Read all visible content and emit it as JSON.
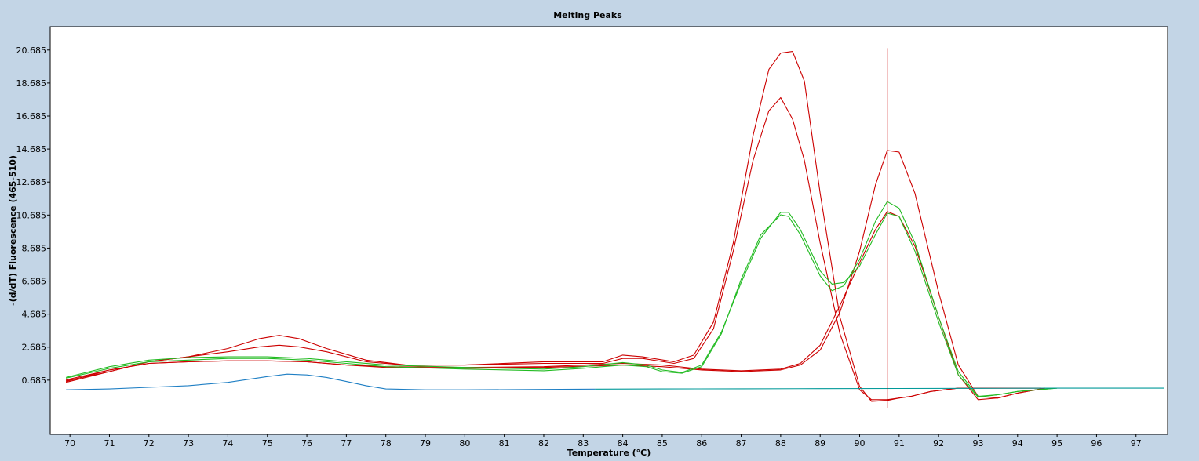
{
  "chart_data": {
    "type": "line",
    "title": "Melting Peaks",
    "xlabel": "Temperature (°C)",
    "ylabel": "-(d/dT) Fluorescence (465-510)",
    "xlim": [
      69.5,
      97.8
    ],
    "ylim": [
      -2.6,
      22.1
    ],
    "x_ticks": [
      "70",
      "71",
      "72",
      "73",
      "74",
      "75",
      "76",
      "77",
      "78",
      "79",
      "80",
      "81",
      "82",
      "83",
      "84",
      "85",
      "86",
      "87",
      "88",
      "89",
      "90",
      "91",
      "92",
      "93",
      "94",
      "95",
      "96",
      "97"
    ],
    "y_ticks": [
      "0.685",
      "2.685",
      "4.685",
      "6.685",
      "8.685",
      "10.685",
      "12.685",
      "14.685",
      "16.685",
      "18.685",
      "20.685"
    ],
    "grid": false,
    "cursor_x": 90.7,
    "series": [
      {
        "color": "#cc0000",
        "x": [
          69.9,
          71,
          72,
          73,
          74,
          74.8,
          75.3,
          75.8,
          76.5,
          77.5,
          78.5,
          80,
          82,
          83.5,
          84,
          84.5,
          85.3,
          85.8,
          86.3,
          86.8,
          87.3,
          87.7,
          88,
          88.3,
          88.6,
          89,
          89.5,
          90,
          90.3,
          90.7,
          91,
          91.3,
          91.8,
          92.5,
          93,
          93.5,
          94,
          94.6
        ],
        "values": [
          0.55,
          1.2,
          1.8,
          2.1,
          2.6,
          3.2,
          3.4,
          3.2,
          2.6,
          1.9,
          1.6,
          1.6,
          1.8,
          1.8,
          2.2,
          2.1,
          1.8,
          2.2,
          4.2,
          9,
          15.5,
          19.5,
          20.5,
          20.6,
          18.8,
          12,
          4.5,
          0.3,
          -0.6,
          -0.55,
          -0.4,
          -0.3,
          0,
          0.2,
          0.2,
          0.2,
          0.2,
          0.2
        ]
      },
      {
        "color": "#cc0000",
        "x": [
          69.9,
          71,
          72,
          73,
          74,
          74.8,
          75.3,
          75.8,
          76.5,
          77.5,
          78.5,
          80,
          82,
          83.5,
          84,
          84.5,
          85.3,
          85.8,
          86.3,
          86.8,
          87.3,
          87.7,
          88,
          88.3,
          88.6,
          89,
          89.5,
          90,
          90.3,
          90.7,
          91,
          91.3,
          91.8,
          92.5,
          93,
          93.5,
          94,
          94.6
        ],
        "values": [
          0.65,
          1.2,
          1.8,
          2.1,
          2.4,
          2.7,
          2.8,
          2.7,
          2.4,
          1.8,
          1.6,
          1.6,
          1.7,
          1.7,
          2,
          2,
          1.7,
          2,
          3.8,
          8.5,
          14,
          17,
          17.8,
          16.5,
          14,
          9,
          3.5,
          0.1,
          -0.5,
          -0.5,
          -0.4,
          -0.3,
          0,
          0.2,
          0.2,
          0.2,
          0.2,
          0.2
        ]
      },
      {
        "color": "#cc0000",
        "x": [
          69.9,
          71,
          72,
          73,
          74,
          75,
          76,
          77,
          78,
          80,
          82,
          84,
          85,
          86,
          87,
          88,
          88.5,
          89,
          89.5,
          90,
          90.4,
          90.7,
          91,
          91.4,
          92,
          92.5,
          93,
          93.5,
          94,
          94.7
        ],
        "values": [
          0.7,
          1.3,
          1.7,
          1.8,
          1.85,
          1.85,
          1.8,
          1.6,
          1.45,
          1.4,
          1.45,
          1.6,
          1.5,
          1.3,
          1.2,
          1.3,
          1.6,
          2.5,
          4.8,
          8.5,
          12.5,
          14.6,
          14.5,
          12,
          6,
          1.6,
          -0.3,
          -0.4,
          -0.1,
          0.2
        ]
      },
      {
        "color": "#cc0000",
        "x": [
          69.9,
          71,
          72,
          73,
          74,
          75,
          76,
          77,
          78,
          80,
          82,
          84,
          85,
          86,
          87,
          88,
          88.5,
          89,
          89.5,
          90,
          90.4,
          90.7,
          91,
          91.4,
          92,
          92.5,
          93,
          93.5,
          94,
          94.7
        ],
        "values": [
          0.6,
          1.3,
          1.7,
          1.8,
          1.85,
          1.85,
          1.8,
          1.6,
          1.5,
          1.45,
          1.5,
          1.7,
          1.6,
          1.35,
          1.25,
          1.35,
          1.7,
          2.8,
          5.2,
          7.8,
          9.8,
          10.9,
          10.6,
          8.8,
          4.5,
          1,
          -0.5,
          -0.4,
          -0.1,
          0.2
        ]
      },
      {
        "color": "#22bb22",
        "x": [
          69.9,
          71,
          72,
          73,
          74,
          75,
          76,
          77,
          78,
          80,
          82,
          83,
          84,
          84.6,
          85,
          85.5,
          86,
          86.5,
          87,
          87.5,
          88,
          88.2,
          88.5,
          89,
          89.3,
          89.6,
          90,
          90.4,
          90.7,
          91,
          91.4,
          92,
          92.5,
          93,
          93.5,
          94,
          95
        ],
        "values": [
          0.8,
          1.4,
          1.8,
          1.9,
          2,
          2,
          1.9,
          1.7,
          1.5,
          1.35,
          1.25,
          1.4,
          1.6,
          1.5,
          1.2,
          1.1,
          1.5,
          3.5,
          6.8,
          9.5,
          10.7,
          10.6,
          9.5,
          7,
          6.1,
          6.4,
          8,
          10.3,
          11.5,
          11.1,
          9,
          4.5,
          1.2,
          -0.3,
          -0.2,
          0,
          0.2
        ]
      },
      {
        "color": "#22bb22",
        "x": [
          69.9,
          71,
          72,
          73,
          74,
          75,
          76,
          77,
          78,
          80,
          82,
          83,
          84,
          84.6,
          85,
          85.5,
          86,
          86.5,
          87,
          87.5,
          88,
          88.2,
          88.5,
          89,
          89.3,
          89.6,
          90,
          90.4,
          90.7,
          91,
          91.4,
          92,
          92.5,
          93,
          93.5,
          94,
          95
        ],
        "values": [
          0.85,
          1.5,
          1.9,
          2.05,
          2.1,
          2.1,
          2,
          1.8,
          1.6,
          1.45,
          1.35,
          1.5,
          1.75,
          1.6,
          1.3,
          1.15,
          1.6,
          3.6,
          6.6,
          9.3,
          10.85,
          10.85,
          9.8,
          7.3,
          6.5,
          6.6,
          7.6,
          9.5,
          10.8,
          10.6,
          8.5,
          4.2,
          1,
          -0.35,
          -0.2,
          0,
          0.2
        ]
      },
      {
        "color": "#1f7fc4",
        "x": [
          69.9,
          71,
          72,
          73,
          74,
          75,
          75.5,
          76,
          76.5,
          77,
          77.5,
          78,
          79,
          80,
          82,
          83.3
        ],
        "values": [
          0.1,
          0.15,
          0.25,
          0.35,
          0.55,
          0.9,
          1.05,
          1,
          0.85,
          0.6,
          0.35,
          0.15,
          0.1,
          0.1,
          0.12,
          0.14
        ]
      },
      {
        "color": "#009999",
        "x": [
          83.3,
          85,
          87,
          89,
          91,
          93,
          95,
          97.7
        ],
        "values": [
          0.14,
          0.15,
          0.16,
          0.17,
          0.18,
          0.19,
          0.2,
          0.2
        ]
      }
    ]
  }
}
